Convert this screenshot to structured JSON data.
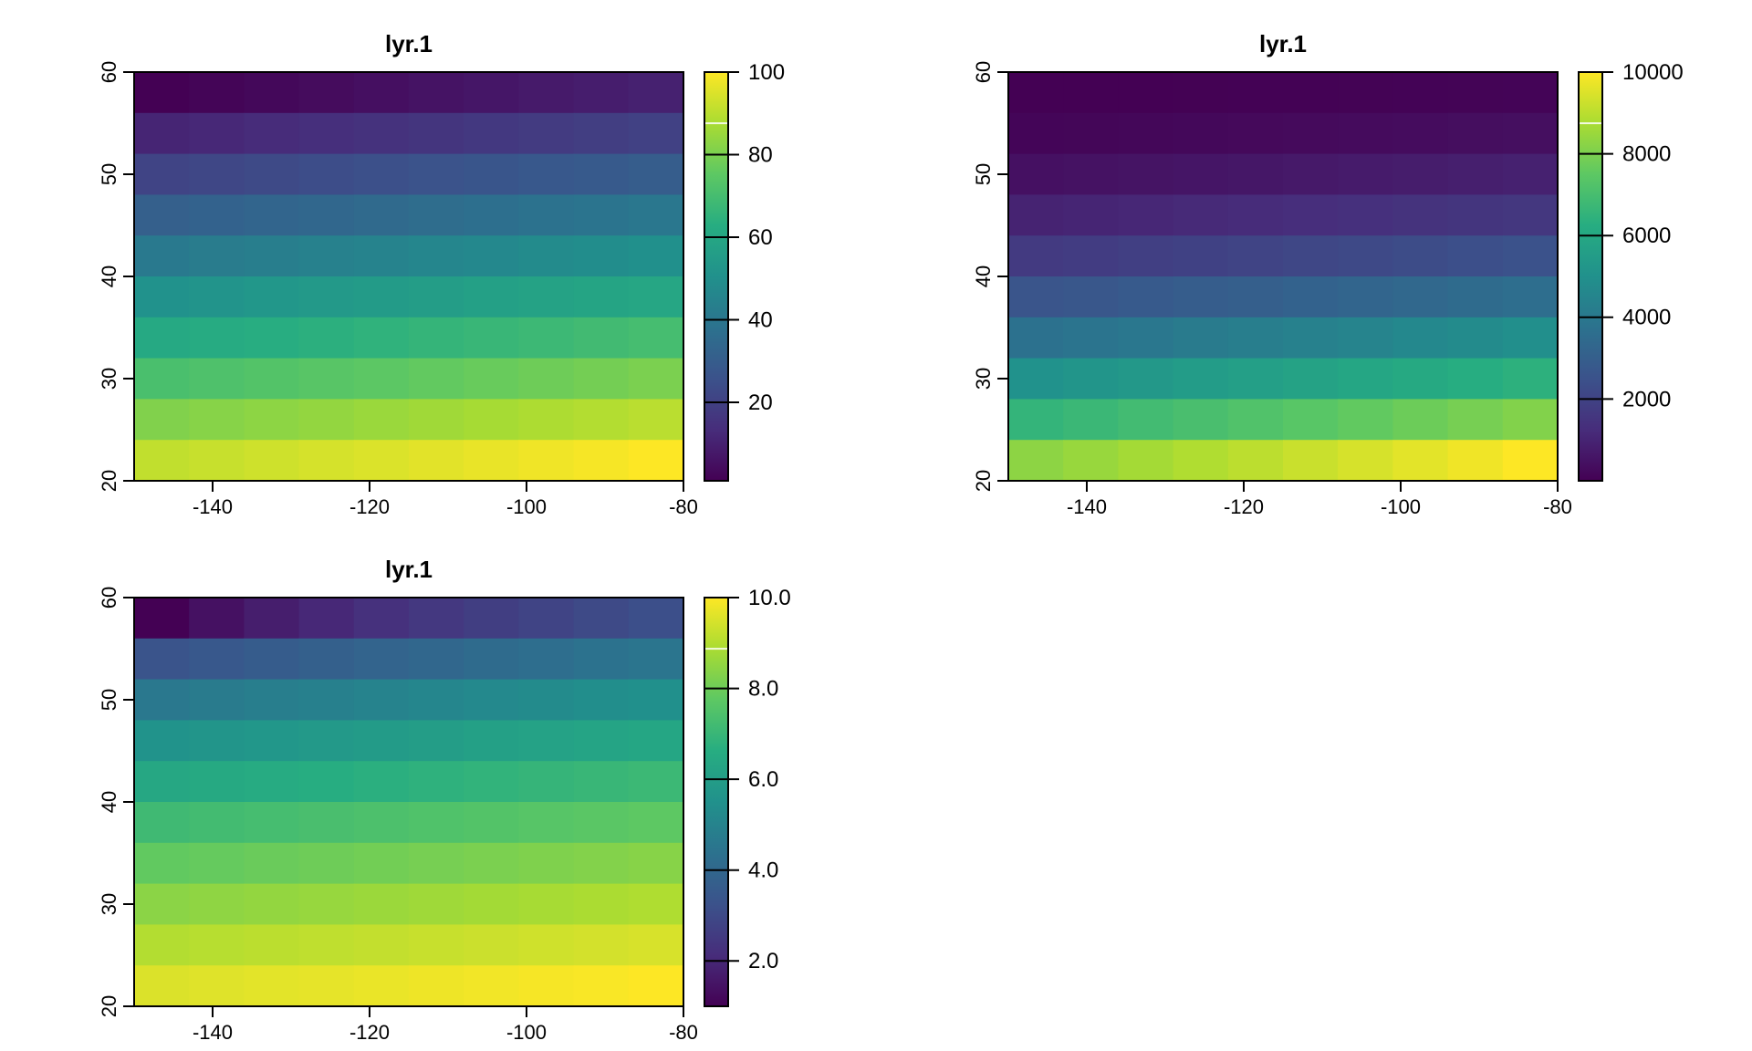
{
  "background": "#FFFFFF",
  "colormap": {
    "name": "viridis",
    "stops": [
      "#440154",
      "#472D7B",
      "#3B528B",
      "#2C728E",
      "#21918C",
      "#27AD81",
      "#5DC863",
      "#AADC32",
      "#FDE725"
    ]
  },
  "chart_data": [
    {
      "type": "heatmap",
      "title": "lyr.1",
      "xlabel": "",
      "ylabel": "",
      "xlim": [
        -150,
        -80
      ],
      "ylim": [
        20,
        60
      ],
      "nrows": 10,
      "ncols": 10,
      "zlim": [
        1,
        100
      ],
      "grid": false,
      "legend_position": "right",
      "x_ticks": [
        -140,
        -120,
        -100,
        -80
      ],
      "x_tick_labels": [
        "-140",
        "-120",
        "-100",
        "-80"
      ],
      "y_ticks": [
        60,
        50,
        40,
        30,
        20
      ],
      "y_tick_labels": [
        "60",
        "50",
        "40",
        "30",
        "20"
      ],
      "legend_ticks": [
        20,
        40,
        60,
        80,
        100
      ],
      "legend_tick_labels": [
        "20",
        "40",
        "60",
        "80",
        "100"
      ],
      "values": [
        [
          1,
          2,
          3,
          4,
          5,
          6,
          7,
          8,
          9,
          10
        ],
        [
          11,
          12,
          13,
          14,
          15,
          16,
          17,
          18,
          19,
          20
        ],
        [
          21,
          22,
          23,
          24,
          25,
          26,
          27,
          28,
          29,
          30
        ],
        [
          31,
          32,
          33,
          34,
          35,
          36,
          37,
          38,
          39,
          40
        ],
        [
          41,
          42,
          43,
          44,
          45,
          46,
          47,
          48,
          49,
          50
        ],
        [
          51,
          52,
          53,
          54,
          55,
          56,
          57,
          58,
          59,
          60
        ],
        [
          61,
          62,
          63,
          64,
          65,
          66,
          67,
          68,
          69,
          70
        ],
        [
          71,
          72,
          73,
          74,
          75,
          76,
          77,
          78,
          79,
          80
        ],
        [
          81,
          82,
          83,
          84,
          85,
          86,
          87,
          88,
          89,
          90
        ],
        [
          91,
          92,
          93,
          94,
          95,
          96,
          97,
          98,
          99,
          100
        ]
      ]
    },
    {
      "type": "heatmap",
      "title": "lyr.1",
      "xlabel": "",
      "ylabel": "",
      "xlim": [
        -150,
        -80
      ],
      "ylim": [
        20,
        60
      ],
      "nrows": 10,
      "ncols": 10,
      "zlim": [
        1,
        10000
      ],
      "grid": false,
      "legend_position": "right",
      "x_ticks": [
        -140,
        -120,
        -100,
        -80
      ],
      "x_tick_labels": [
        "-140",
        "-120",
        "-100",
        "-80"
      ],
      "y_ticks": [
        60,
        50,
        40,
        30,
        20
      ],
      "y_tick_labels": [
        "60",
        "50",
        "40",
        "30",
        "20"
      ],
      "legend_ticks": [
        2000,
        4000,
        6000,
        8000,
        10000
      ],
      "legend_tick_labels": [
        "2000",
        "4000",
        "6000",
        "8000",
        "10000"
      ],
      "values": [
        [
          1,
          4,
          9,
          16,
          25,
          36,
          49,
          64,
          81,
          100
        ],
        [
          121,
          144,
          169,
          196,
          225,
          256,
          289,
          324,
          361,
          400
        ],
        [
          441,
          484,
          529,
          576,
          625,
          676,
          729,
          784,
          841,
          900
        ],
        [
          961,
          1024,
          1089,
          1156,
          1225,
          1296,
          1369,
          1444,
          1521,
          1600
        ],
        [
          1681,
          1764,
          1849,
          1936,
          2025,
          2116,
          2209,
          2304,
          2401,
          2500
        ],
        [
          2601,
          2704,
          2809,
          2916,
          3025,
          3136,
          3249,
          3364,
          3481,
          3600
        ],
        [
          3721,
          3844,
          3969,
          4096,
          4225,
          4356,
          4489,
          4624,
          4761,
          4900
        ],
        [
          5041,
          5184,
          5329,
          5476,
          5625,
          5776,
          5929,
          6084,
          6241,
          6400
        ],
        [
          6561,
          6724,
          6889,
          7056,
          7225,
          7396,
          7569,
          7744,
          7921,
          8100
        ],
        [
          8281,
          8464,
          8649,
          8836,
          9025,
          9216,
          9409,
          9604,
          9801,
          10000
        ]
      ]
    },
    {
      "type": "heatmap",
      "title": "lyr.1",
      "xlabel": "",
      "ylabel": "",
      "xlim": [
        -150,
        -80
      ],
      "ylim": [
        20,
        60
      ],
      "nrows": 10,
      "ncols": 10,
      "zlim": [
        1,
        10
      ],
      "grid": false,
      "legend_position": "right",
      "x_ticks": [
        -140,
        -120,
        -100,
        -80
      ],
      "x_tick_labels": [
        "-140",
        "-120",
        "-100",
        "-80"
      ],
      "y_ticks": [
        60,
        50,
        40,
        30,
        20
      ],
      "y_tick_labels": [
        "60",
        "50",
        "40",
        "30",
        "20"
      ],
      "legend_ticks": [
        2,
        4,
        6,
        8,
        10
      ],
      "legend_tick_labels": [
        "2.0",
        "4.0",
        "6.0",
        "8.0",
        "10.0"
      ],
      "values": [
        [
          1,
          1.414,
          1.732,
          2,
          2.236,
          2.449,
          2.646,
          2.828,
          3,
          3.162
        ],
        [
          3.317,
          3.464,
          3.606,
          3.742,
          3.873,
          4,
          4.123,
          4.243,
          4.359,
          4.472
        ],
        [
          4.583,
          4.69,
          4.796,
          4.899,
          5,
          5.099,
          5.196,
          5.292,
          5.385,
          5.477
        ],
        [
          5.568,
          5.657,
          5.745,
          5.831,
          5.916,
          6,
          6.083,
          6.164,
          6.245,
          6.325
        ],
        [
          6.403,
          6.481,
          6.557,
          6.633,
          6.708,
          6.782,
          6.856,
          6.928,
          7,
          7.071
        ],
        [
          7.141,
          7.211,
          7.28,
          7.348,
          7.416,
          7.483,
          7.55,
          7.616,
          7.681,
          7.746
        ],
        [
          7.81,
          7.874,
          7.937,
          8,
          8.062,
          8.124,
          8.185,
          8.246,
          8.307,
          8.367
        ],
        [
          8.426,
          8.485,
          8.544,
          8.602,
          8.66,
          8.718,
          8.775,
          8.832,
          8.888,
          8.944
        ],
        [
          9,
          9.055,
          9.11,
          9.165,
          9.22,
          9.274,
          9.327,
          9.381,
          9.434,
          9.487
        ],
        [
          9.539,
          9.592,
          9.644,
          9.695,
          9.747,
          9.798,
          9.849,
          9.899,
          9.95,
          10
        ]
      ]
    }
  ]
}
